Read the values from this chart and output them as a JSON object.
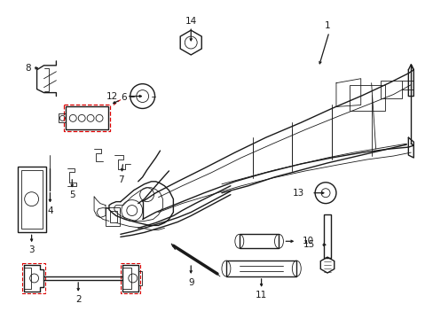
{
  "bg_color": "#ffffff",
  "line_color": "#1a1a1a",
  "red_color": "#dd0000",
  "fig_width": 4.89,
  "fig_height": 3.6,
  "dpi": 100,
  "label_fontsize": 7.5,
  "lw_main": 1.0,
  "lw_thin": 0.6,
  "lw_red": 0.8
}
